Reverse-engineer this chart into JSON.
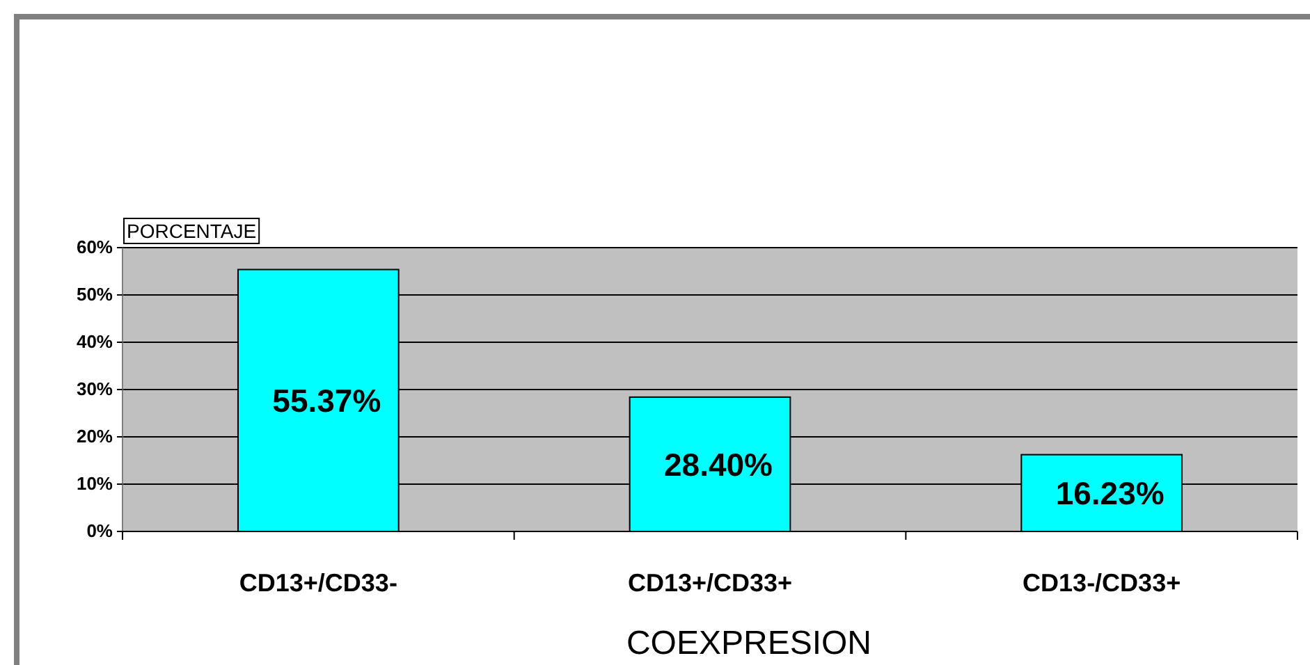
{
  "chart_data": {
    "type": "bar",
    "ylabel": "PORCENTAJE",
    "xlabel": "COEXPRESION",
    "categories": [
      "CD13+/CD33-",
      "CD13+/CD33+",
      "CD13-/CD33+"
    ],
    "values": [
      55.37,
      28.4,
      16.23
    ],
    "value_labels": [
      "55.37%",
      "28.40%",
      "16.23%"
    ],
    "color": "#00ffff",
    "ylim": [
      0,
      60
    ],
    "yticks": [
      {
        "value": 0,
        "label": "0%"
      },
      {
        "value": 10,
        "label": "10%"
      },
      {
        "value": 20,
        "label": "20%"
      },
      {
        "value": 30,
        "label": "30%"
      },
      {
        "value": 40,
        "label": "40%"
      },
      {
        "value": 50,
        "label": "50%"
      },
      {
        "value": 60,
        "label": "60%"
      }
    ],
    "grid": "y"
  }
}
